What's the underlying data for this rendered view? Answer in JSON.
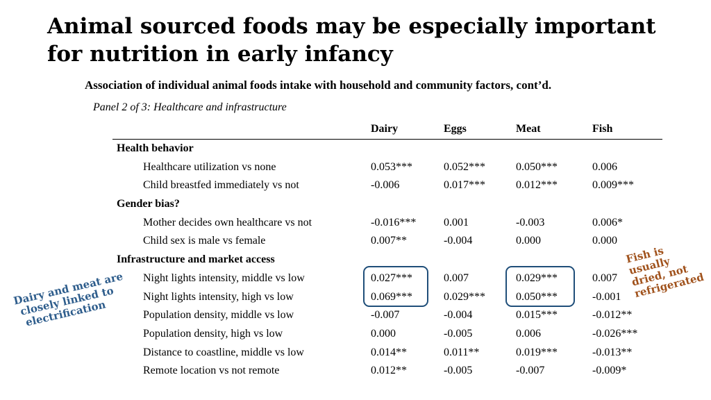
{
  "title": "Animal sourced foods may be especially important for nutrition in early infancy",
  "subtitle": "Association of individual animal foods intake with household and community factors, cont’d.",
  "panel": "Panel 2 of 3: Healthcare and infrastructure",
  "columns": [
    "Dairy",
    "Eggs",
    "Meat",
    "Fish"
  ],
  "sections": [
    {
      "name": "Health behavior",
      "rows": [
        {
          "label": "Healthcare utilization vs none",
          "values": [
            "0.053***",
            "0.052***",
            "0.050***",
            "0.006"
          ]
        },
        {
          "label": "Child breastfed immediately vs not",
          "values": [
            "-0.006",
            "0.017***",
            "0.012***",
            "0.009***"
          ]
        }
      ]
    },
    {
      "name": "Gender bias?",
      "rows": [
        {
          "label": "Mother decides own healthcare vs not",
          "values": [
            "-0.016***",
            "0.001",
            "-0.003",
            "0.006*"
          ]
        },
        {
          "label": "Child sex is male vs female",
          "values": [
            "0.007**",
            "-0.004",
            "0.000",
            "0.000"
          ]
        }
      ]
    },
    {
      "name": "Infrastructure and market access",
      "rows": [
        {
          "label": "Night lights intensity, middle vs low",
          "values": [
            "0.027***",
            "0.007",
            "0.029***",
            "0.007"
          ]
        },
        {
          "label": "Night lights intensity, high vs low",
          "values": [
            "0.069***",
            "0.029***",
            "0.050***",
            "-0.001"
          ]
        },
        {
          "label": "Population density, middle vs low",
          "values": [
            "-0.007",
            "-0.004",
            "0.015***",
            "-0.012**"
          ]
        },
        {
          "label": "Population density, high vs low",
          "values": [
            "0.000",
            "-0.005",
            "0.006",
            "-0.026***"
          ]
        },
        {
          "label": "Distance to coastline, middle vs low",
          "values": [
            "0.014**",
            "0.011**",
            "0.019***",
            "-0.013**"
          ]
        },
        {
          "label": "Remote location vs not remote",
          "values": [
            "0.012**",
            "-0.005",
            "-0.007",
            "-0.009*"
          ]
        }
      ]
    }
  ],
  "annotations": {
    "dairy_meat": [
      "Dairy and meat are",
      "closely linked to",
      "electrification"
    ],
    "fish": [
      "Fish is",
      "usually",
      "dried, not",
      "refrigerated"
    ]
  },
  "colors": {
    "box": "#1f4e79",
    "note_blue": "#2e5d8c",
    "note_brown": "#a0521c"
  }
}
